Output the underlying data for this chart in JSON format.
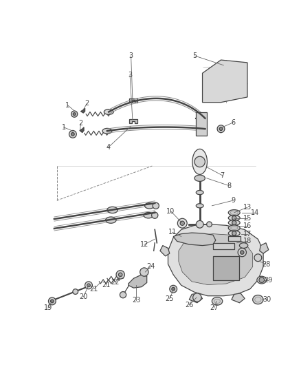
{
  "background_color": "#ffffff",
  "fig_width": 4.38,
  "fig_height": 5.33,
  "dpi": 100,
  "label_fontsize": 7.0,
  "label_color": "#444444",
  "line_color": "#444444",
  "line_width": 0.9
}
